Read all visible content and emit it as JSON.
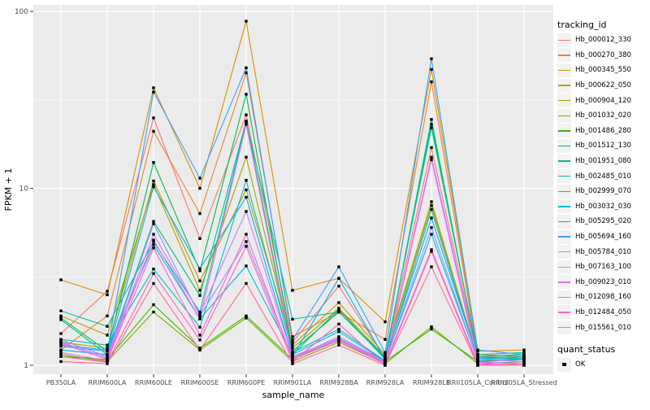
{
  "colors": {
    "panel_background": "#EBEBEB",
    "gridline": "#FFFFFF",
    "tick": "#333333",
    "tick_label": "#4D4D4D",
    "legend_key_background": "#F2F2F2",
    "point": "#000000"
  },
  "legend": {
    "tracking_title": "tracking_id",
    "quant_title": "quant_status",
    "quant_label": "OK"
  },
  "chart_data": {
    "type": "line",
    "xlabel": "sample_name",
    "ylabel": "FPKM + 1",
    "yscale": "log10",
    "ylim": [
      0.89,
      109
    ],
    "y_breaks": [
      1,
      10,
      100
    ],
    "y_break_labels": [
      "1",
      "10",
      "100"
    ],
    "y_minor_breaks": [
      3.162,
      31.62
    ],
    "grid": true,
    "legend_position": "right",
    "point_shape": "filled-square",
    "categories": [
      "PB350LA",
      "RRIM600LA",
      "RRIM600LE",
      "RRIM600SE",
      "RRIM600PE",
      "RRIM901LA",
      "RRIM928BA",
      "RRIM928LA",
      "RRIM928LE",
      "RRII105LA_Control",
      "RRII105LA_Stressed"
    ],
    "series": [
      {
        "name": "Hb_000012_330",
        "color": "#F8766D",
        "values": [
          1.51,
          2.62,
          25.0,
          5.2,
          26.0,
          1.35,
          2.8,
          1.1,
          17.0,
          1.12,
          1.1
        ]
      },
      {
        "name": "Hb_000270_380",
        "color": "#EA8331",
        "values": [
          1.22,
          1.9,
          21.0,
          7.2,
          45.0,
          1.45,
          2.0,
          1.4,
          40.0,
          1.15,
          1.12
        ]
      },
      {
        "name": "Hb_000345_550",
        "color": "#D89000",
        "values": [
          3.04,
          2.5,
          37.0,
          10.0,
          88.0,
          2.65,
          3.1,
          1.76,
          47.0,
          1.2,
          1.22
        ]
      },
      {
        "name": "Hb_000622_050",
        "color": "#C09B00",
        "values": [
          1.35,
          1.25,
          11.0,
          3.0,
          9.8,
          1.3,
          2.26,
          1.15,
          8.4,
          1.08,
          1.1
        ]
      },
      {
        "name": "Hb_000904_120",
        "color": "#A3A500",
        "values": [
          1.9,
          1.48,
          10.5,
          2.65,
          15.0,
          1.25,
          2.1,
          1.12,
          8.0,
          1.1,
          1.12
        ]
      },
      {
        "name": "Hb_001032_020",
        "color": "#7CAE00",
        "values": [
          1.15,
          1.05,
          2.0,
          1.22,
          1.85,
          1.05,
          1.35,
          1.02,
          1.65,
          1.02,
          1.05
        ]
      },
      {
        "name": "Hb_001486_280",
        "color": "#39B600",
        "values": [
          1.12,
          1.08,
          2.2,
          1.25,
          1.9,
          1.08,
          1.4,
          1.05,
          1.6,
          1.05,
          1.08
        ]
      },
      {
        "name": "Hb_001512_130",
        "color": "#00BB4E",
        "values": [
          1.85,
          1.2,
          14.0,
          3.42,
          34.0,
          1.2,
          2.0,
          1.1,
          23.0,
          1.12,
          1.15
        ]
      },
      {
        "name": "Hb_001951_080",
        "color": "#00BF7D",
        "values": [
          1.81,
          1.15,
          6.5,
          2.48,
          24.0,
          1.15,
          2.07,
          1.08,
          24.5,
          1.1,
          1.12
        ]
      },
      {
        "name": "Hb_002485_010",
        "color": "#00C1A3",
        "values": [
          2.03,
          1.66,
          5.0,
          2.0,
          23.7,
          1.82,
          2.0,
          1.12,
          22.0,
          1.15,
          1.18
        ]
      },
      {
        "name": "Hb_002999_070",
        "color": "#00BFC4",
        "values": [
          1.4,
          1.3,
          3.5,
          1.64,
          11.1,
          1.18,
          1.6,
          1.06,
          7.6,
          1.08,
          1.1
        ]
      },
      {
        "name": "Hb_003032_030",
        "color": "#00BAE0",
        "values": [
          1.3,
          1.22,
          4.8,
          1.83,
          3.64,
          1.15,
          1.55,
          1.05,
          5.5,
          1.06,
          1.08
        ]
      },
      {
        "name": "Hb_005295_020",
        "color": "#00B0F6",
        "values": [
          1.22,
          1.15,
          10.2,
          3.52,
          8.9,
          1.12,
          3.1,
          1.08,
          6.8,
          1.1,
          1.08
        ]
      },
      {
        "name": "Hb_005694_160",
        "color": "#35A2FF",
        "values": [
          1.28,
          1.2,
          35.0,
          11.4,
          48.0,
          1.39,
          3.6,
          1.18,
          54.0,
          1.22,
          1.15
        ]
      },
      {
        "name": "Hb_005784_010",
        "color": "#9590FF",
        "values": [
          1.39,
          1.12,
          6.3,
          1.9,
          5.0,
          1.1,
          1.45,
          1.05,
          6.0,
          1.05,
          1.02
        ]
      },
      {
        "name": "Hb_007163_100",
        "color": "#C77CFF",
        "values": [
          1.35,
          1.1,
          5.5,
          1.95,
          7.4,
          1.12,
          1.42,
          1.04,
          15.0,
          1.08,
          1.05
        ]
      },
      {
        "name": "Hb_009023_010",
        "color": "#E76BF3",
        "values": [
          1.33,
          1.08,
          5.1,
          1.83,
          23.0,
          1.1,
          1.4,
          1.03,
          14.5,
          1.04,
          1.02
        ]
      },
      {
        "name": "Hb_012098_160",
        "color": "#FA62DB",
        "values": [
          1.18,
          1.06,
          4.6,
          1.48,
          5.5,
          1.08,
          1.38,
          1.02,
          4.5,
          1.02,
          1.0
        ]
      },
      {
        "name": "Hb_012484_050",
        "color": "#FF62BC",
        "values": [
          1.12,
          1.04,
          3.3,
          1.39,
          4.7,
          1.05,
          1.71,
          1.0,
          4.4,
          1.0,
          1.02
        ]
      },
      {
        "name": "Hb_015561_010",
        "color": "#FF6A98",
        "values": [
          1.05,
          1.02,
          2.9,
          1.22,
          2.9,
          1.02,
          1.3,
          1.0,
          3.6,
          1.0,
          1.0
        ]
      }
    ]
  }
}
